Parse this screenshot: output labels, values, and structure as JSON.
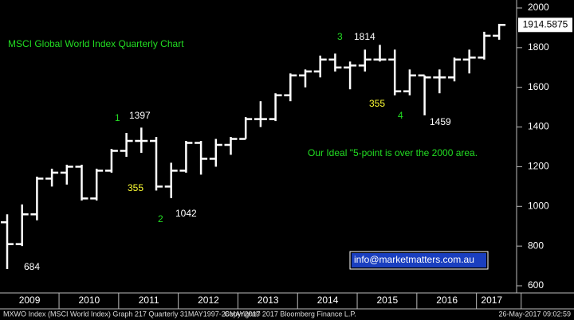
{
  "chart_data": {
    "type": "ohlc",
    "title": "MSCI Global World Index Quarterly Chart",
    "open": [
      920,
      810,
      960,
      1140,
      1170,
      1200,
      1040,
      1180,
      1280,
      1330,
      1330,
      1100,
      1180,
      1320,
      1240,
      1310,
      1340,
      1440,
      1440,
      1560,
      1660,
      1680,
      1740,
      1700,
      1710,
      1740,
      1740,
      1580,
      1660,
      1650,
      1650,
      1740,
      1750,
      1860
    ],
    "high": [
      960,
      1010,
      1150,
      1190,
      1210,
      1210,
      1190,
      1290,
      1370,
      1397,
      1350,
      1220,
      1330,
      1330,
      1340,
      1350,
      1450,
      1530,
      1570,
      1670,
      1690,
      1760,
      1770,
      1730,
      1790,
      1814,
      1790,
      1690,
      1660,
      1690,
      1750,
      1790,
      1880,
      1920
    ],
    "low": [
      684,
      800,
      930,
      1100,
      1110,
      1030,
      1030,
      1170,
      1250,
      1270,
      1080,
      1042,
      1170,
      1160,
      1200,
      1260,
      1340,
      1400,
      1430,
      1530,
      1600,
      1650,
      1680,
      1590,
      1680,
      1730,
      1560,
      1560,
      1459,
      1570,
      1630,
      1670,
      1740,
      1840
    ],
    "close": [
      810,
      960,
      1140,
      1170,
      1200,
      1040,
      1180,
      1280,
      1330,
      1330,
      1100,
      1180,
      1320,
      1240,
      1310,
      1340,
      1440,
      1440,
      1560,
      1660,
      1680,
      1740,
      1700,
      1710,
      1740,
      1740,
      1580,
      1660,
      1650,
      1650,
      1740,
      1750,
      1860,
      1914.5875
    ],
    "color": "#ffffff",
    "ylim": [
      600,
      2000
    ],
    "yticks": [
      600,
      800,
      1000,
      1200,
      1400,
      1600,
      1800,
      2000
    ],
    "xticks": [
      {
        "value": 1.5,
        "label": "2009"
      },
      {
        "value": 5.5,
        "label": "2010"
      },
      {
        "value": 9.5,
        "label": "2011"
      },
      {
        "value": 13.5,
        "label": "2012"
      },
      {
        "value": 17.5,
        "label": "2013"
      },
      {
        "value": 21.5,
        "label": "2014"
      },
      {
        "value": 25.5,
        "label": "2015"
      },
      {
        "value": 29.5,
        "label": "2016"
      },
      {
        "value": 32.5,
        "label": "2017"
      }
    ],
    "annotations": [
      "684",
      "1",
      "1397",
      "355",
      "2",
      "1042",
      "3",
      "1814",
      "355",
      "4",
      "1459",
      "Our Ideal \"5-point is over the 2000 area.",
      "info@marketmatters.com.au"
    ],
    "footer": [
      "MXWO Index (MSCI World Index) Graph 217  Quarterly 31MAY1997-26MAY2017",
      "Copyright© 2017 Bloomberg Finance L.P.",
      "26-May-2017 09:02:59"
    ]
  }
}
